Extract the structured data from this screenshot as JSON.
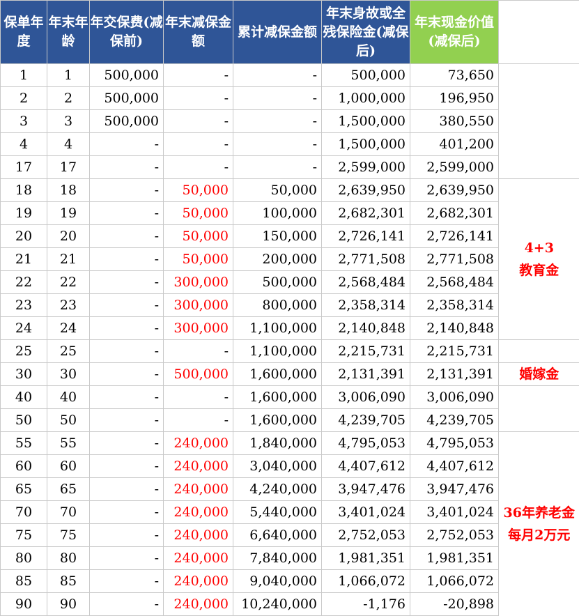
{
  "headers": {
    "policy_year": "保单年度",
    "age_end": "年末年龄",
    "annual_premium": "年交保费(减保前)",
    "reduction_amount": "年末减保金额",
    "cumulative_reduction": "累计减保金额",
    "death_benefit": "年末身故或全残保险金(减保后)",
    "cash_value": "年末现金价值(减保后)"
  },
  "rows": [
    {
      "year": "1",
      "age": "1",
      "premium": "500,000",
      "reduce": "-",
      "cum": "-",
      "death": "500,000",
      "cash": "73,650"
    },
    {
      "year": "2",
      "age": "2",
      "premium": "500,000",
      "reduce": "-",
      "cum": "-",
      "death": "1,000,000",
      "cash": "196,950"
    },
    {
      "year": "3",
      "age": "3",
      "premium": "500,000",
      "reduce": "-",
      "cum": "-",
      "death": "1,500,000",
      "cash": "380,550"
    },
    {
      "year": "4",
      "age": "4",
      "premium": "-",
      "reduce": "-",
      "cum": "-",
      "death": "1,500,000",
      "cash": "401,200"
    },
    {
      "year": "17",
      "age": "17",
      "premium": "-",
      "reduce": "-",
      "cum": "-",
      "death": "2,599,000",
      "cash": "2,599,000"
    },
    {
      "year": "18",
      "age": "18",
      "premium": "-",
      "reduce": "50,000",
      "cum": "50,000",
      "death": "2,639,950",
      "cash": "2,639,950"
    },
    {
      "year": "19",
      "age": "19",
      "premium": "-",
      "reduce": "50,000",
      "cum": "100,000",
      "death": "2,682,301",
      "cash": "2,682,301"
    },
    {
      "year": "20",
      "age": "20",
      "premium": "-",
      "reduce": "50,000",
      "cum": "150,000",
      "death": "2,726,141",
      "cash": "2,726,141"
    },
    {
      "year": "21",
      "age": "21",
      "premium": "-",
      "reduce": "50,000",
      "cum": "200,000",
      "death": "2,771,508",
      "cash": "2,771,508"
    },
    {
      "year": "22",
      "age": "22",
      "premium": "-",
      "reduce": "300,000",
      "cum": "500,000",
      "death": "2,568,484",
      "cash": "2,568,484"
    },
    {
      "year": "23",
      "age": "23",
      "premium": "-",
      "reduce": "300,000",
      "cum": "800,000",
      "death": "2,358,314",
      "cash": "2,358,314"
    },
    {
      "year": "24",
      "age": "24",
      "premium": "-",
      "reduce": "300,000",
      "cum": "1,100,000",
      "death": "2,140,848",
      "cash": "2,140,848"
    },
    {
      "year": "25",
      "age": "25",
      "premium": "-",
      "reduce": "-",
      "cum": "1,100,000",
      "death": "2,215,731",
      "cash": "2,215,731"
    },
    {
      "year": "30",
      "age": "30",
      "premium": "-",
      "reduce": "500,000",
      "cum": "1,600,000",
      "death": "2,131,391",
      "cash": "2,131,391"
    },
    {
      "year": "40",
      "age": "40",
      "premium": "-",
      "reduce": "-",
      "cum": "1,600,000",
      "death": "3,006,090",
      "cash": "3,006,090"
    },
    {
      "year": "50",
      "age": "50",
      "premium": "-",
      "reduce": "-",
      "cum": "1,600,000",
      "death": "4,239,705",
      "cash": "4,239,705"
    },
    {
      "year": "55",
      "age": "55",
      "premium": "-",
      "reduce": "240,000",
      "cum": "1,840,000",
      "death": "4,795,053",
      "cash": "4,795,053"
    },
    {
      "year": "60",
      "age": "60",
      "premium": "-",
      "reduce": "240,000",
      "cum": "3,040,000",
      "death": "4,407,612",
      "cash": "4,407,612"
    },
    {
      "year": "65",
      "age": "65",
      "premium": "-",
      "reduce": "240,000",
      "cum": "4,240,000",
      "death": "3,947,476",
      "cash": "3,947,476"
    },
    {
      "year": "70",
      "age": "70",
      "premium": "-",
      "reduce": "240,000",
      "cum": "5,440,000",
      "death": "3,401,024",
      "cash": "3,401,024"
    },
    {
      "year": "75",
      "age": "75",
      "premium": "-",
      "reduce": "240,000",
      "cum": "6,640,000",
      "death": "2,752,053",
      "cash": "2,752,053"
    },
    {
      "year": "80",
      "age": "80",
      "premium": "-",
      "reduce": "240,000",
      "cum": "7,840,000",
      "death": "1,981,351",
      "cash": "1,981,351"
    },
    {
      "year": "85",
      "age": "85",
      "premium": "-",
      "reduce": "240,000",
      "cum": "9,040,000",
      "death": "1,066,072",
      "cash": "1,066,072"
    },
    {
      "year": "90",
      "age": "90",
      "premium": "-",
      "reduce": "240,000",
      "cum": "10,240,000",
      "death": "-1,176",
      "cash": "-20,898"
    }
  ],
  "notes": {
    "education_line1": "4+3",
    "education_line2": "教育金",
    "wedding": "婚嫁金",
    "pension_line1": "36年养老金",
    "pension_line2": "每月2万元"
  },
  "colors": {
    "header_bg": "#2f5597",
    "header_highlight_bg": "#92d050",
    "reduction_text": "#ff0000",
    "note_text": "#ff0000"
  }
}
